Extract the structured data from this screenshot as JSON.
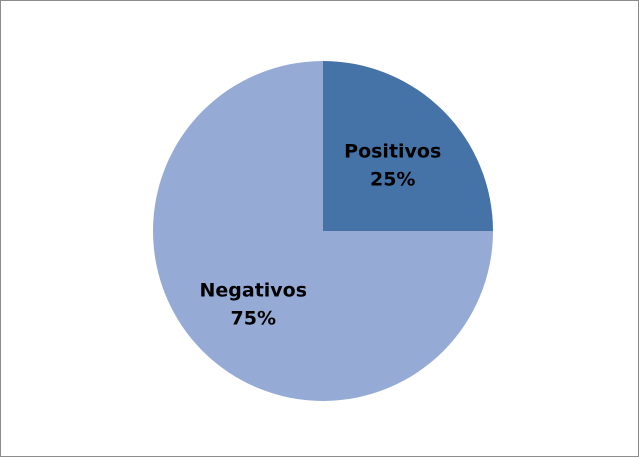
{
  "chart_data": {
    "type": "pie",
    "title": "",
    "slices": [
      {
        "label": "Positivos",
        "value": 25,
        "percent_label": "25%",
        "color": "#4572A7"
      },
      {
        "label": "Negativos",
        "value": 75,
        "percent_label": "75%",
        "color": "#95ABD5"
      }
    ],
    "start_angle": "12 o'clock",
    "direction": "clockwise",
    "legend": "none",
    "data_labels": "inside"
  }
}
